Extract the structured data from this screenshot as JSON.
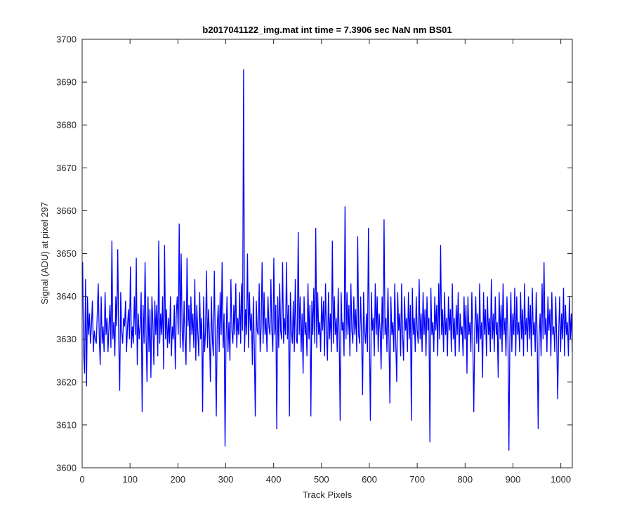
{
  "chart_data": {
    "type": "line",
    "title": "b2017041122_img.mat int time = 7.3906 sec  NaN nm BS01",
    "xlabel": "Track Pixels",
    "ylabel": "Signal (ADU) at pixel 297",
    "xlim": [
      0,
      1024
    ],
    "ylim": [
      3600,
      3700
    ],
    "xticks": [
      0,
      100,
      200,
      300,
      400,
      500,
      600,
      700,
      800,
      900,
      1000
    ],
    "yticks": [
      3600,
      3610,
      3620,
      3630,
      3640,
      3650,
      3660,
      3670,
      3680,
      3690,
      3700
    ],
    "grid": false,
    "legend": "none",
    "series_color": "#0000ff",
    "series": [
      {
        "x_start": 1,
        "x_step": 1,
        "approx_mean": 3631,
        "values": [
          3648,
          3627,
          3622,
          3644,
          3619,
          3640,
          3631,
          3636,
          3629,
          3633,
          3639,
          3627,
          3632,
          3630,
          3629,
          3636,
          3643,
          3631,
          3624,
          3640,
          3629,
          3633,
          3627,
          3641,
          3631,
          3635,
          3627,
          3633,
          3638,
          3628,
          3653,
          3630,
          3634,
          3626,
          3640,
          3633,
          3651,
          3630,
          3618,
          3641,
          3632,
          3629,
          3635,
          3633,
          3639,
          3627,
          3633,
          3637,
          3630,
          3647,
          3628,
          3633,
          3629,
          3640,
          3631,
          3649,
          3624,
          3636,
          3630,
          3633,
          3641,
          3613,
          3638,
          3629,
          3648,
          3631,
          3620,
          3640,
          3627,
          3637,
          3621,
          3640,
          3634,
          3624,
          3639,
          3631,
          3638,
          3626,
          3653,
          3629,
          3636,
          3631,
          3640,
          3623,
          3652,
          3630,
          3637,
          3628,
          3635,
          3629,
          3640,
          3626,
          3633,
          3630,
          3638,
          3623,
          3636,
          3640,
          3631,
          3657,
          3628,
          3650,
          3632,
          3627,
          3639,
          3630,
          3624,
          3649,
          3633,
          3638,
          3627,
          3640,
          3631,
          3636,
          3628,
          3644,
          3625,
          3638,
          3632,
          3626,
          3641,
          3630,
          3635,
          3613,
          3640,
          3627,
          3632,
          3646,
          3628,
          3637,
          3631,
          3620,
          3640,
          3630,
          3626,
          3646,
          3629,
          3612,
          3633,
          3638,
          3627,
          3641,
          3631,
          3648,
          3628,
          3636,
          3605,
          3630,
          3640,
          3627,
          3634,
          3625,
          3644,
          3632,
          3629,
          3638,
          3631,
          3643,
          3628,
          3635,
          3631,
          3641,
          3629,
          3643,
          3632,
          3693,
          3627,
          3637,
          3631,
          3650,
          3628,
          3641,
          3632,
          3636,
          3624,
          3640,
          3628,
          3612,
          3639,
          3632,
          3631,
          3643,
          3627,
          3633,
          3648,
          3629,
          3641,
          3631,
          3635,
          3627,
          3640,
          3633,
          3631,
          3644,
          3632,
          3627,
          3649,
          3631,
          3638,
          3609,
          3640,
          3628,
          3643,
          3632,
          3630,
          3648,
          3629,
          3635,
          3631,
          3648,
          3630,
          3638,
          3612,
          3641,
          3632,
          3629,
          3639,
          3627,
          3644,
          3630,
          3629,
          3655,
          3631,
          3640,
          3627,
          3636,
          3622,
          3640,
          3631,
          3634,
          3626,
          3643,
          3630,
          3638,
          3612,
          3639,
          3631,
          3642,
          3629,
          3656,
          3628,
          3641,
          3631,
          3634,
          3627,
          3640,
          3632,
          3639,
          3626,
          3643,
          3631,
          3625,
          3641,
          3630,
          3636,
          3627,
          3653,
          3629,
          3640,
          3631,
          3635,
          3627,
          3642,
          3631,
          3611,
          3641,
          3632,
          3634,
          3626,
          3661,
          3630,
          3641,
          3631,
          3638,
          3626,
          3643,
          3632,
          3629,
          3640,
          3631,
          3637,
          3627,
          3654,
          3631,
          3629,
          3640,
          3630,
          3617,
          3641,
          3632,
          3629,
          3636,
          3627,
          3656,
          3630,
          3611,
          3641,
          3632,
          3635,
          3626,
          3643,
          3631,
          3640,
          3627,
          3636,
          3632,
          3623,
          3640,
          3630,
          3658,
          3631,
          3635,
          3627,
          3642,
          3630,
          3615,
          3640,
          3631,
          3634,
          3627,
          3643,
          3629,
          3620,
          3641,
          3632,
          3636,
          3626,
          3643,
          3631,
          3625,
          3640,
          3632,
          3635,
          3627,
          3641,
          3630,
          3638,
          3611,
          3642,
          3631,
          3635,
          3627,
          3640,
          3632,
          3629,
          3644,
          3630,
          3636,
          3627,
          3641,
          3631,
          3637,
          3626,
          3640,
          3632,
          3635,
          3606,
          3642,
          3631,
          3634,
          3627,
          3640,
          3632,
          3638,
          3626,
          3643,
          3630,
          3652,
          3631,
          3637,
          3627,
          3641,
          3631,
          3635,
          3626,
          3640,
          3632,
          3637,
          3627,
          3643,
          3630,
          3635,
          3626,
          3638,
          3631,
          3641,
          3627,
          3636,
          3631,
          3633,
          3626,
          3640,
          3630,
          3638,
          3622,
          3640,
          3631,
          3634,
          3627,
          3641,
          3630,
          3613,
          3632,
          3640,
          3629,
          3636,
          3627,
          3643,
          3630,
          3634,
          3621,
          3641,
          3631,
          3637,
          3626,
          3640,
          3631,
          3635,
          3627,
          3644,
          3630,
          3636,
          3627,
          3640,
          3631,
          3634,
          3621,
          3641,
          3630,
          3638,
          3627,
          3643,
          3631,
          3635,
          3626,
          3640,
          3631,
          3604,
          3630,
          3641,
          3627,
          3636,
          3631,
          3642,
          3626,
          3640,
          3631,
          3634,
          3627,
          3641,
          3630,
          3637,
          3626,
          3643,
          3631,
          3635,
          3627,
          3640,
          3630,
          3638,
          3626,
          3642,
          3631,
          3634,
          3627,
          3641,
          3630,
          3609,
          3631,
          3636,
          3626,
          3643,
          3630,
          3648,
          3631,
          3635,
          3627,
          3640,
          3632,
          3637,
          3626,
          3641,
          3631,
          3633,
          3627,
          3640,
          3630,
          3616,
          3631,
          3640,
          3627,
          3636,
          3630,
          3642,
          3626,
          3638,
          3631,
          3634,
          3626,
          3640,
          3630,
          3636,
          3627
        ]
      }
    ]
  }
}
